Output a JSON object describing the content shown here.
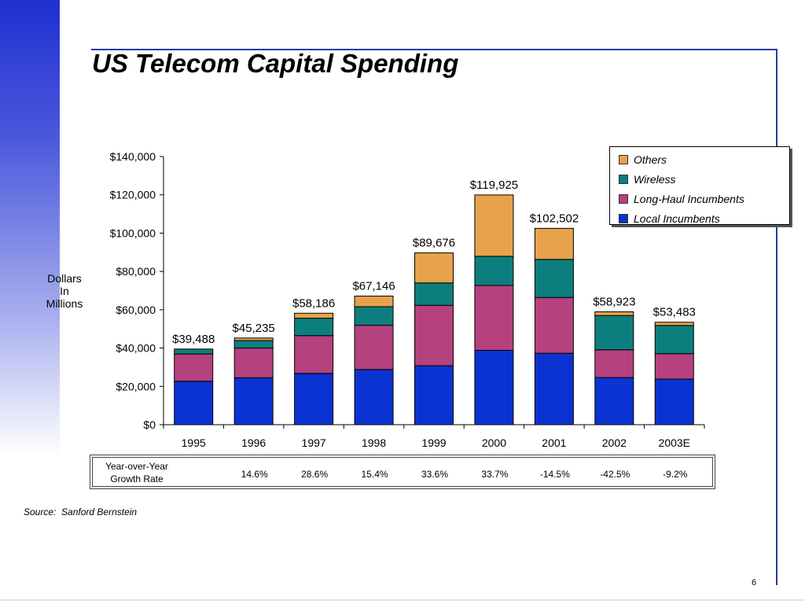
{
  "slide": {
    "title": "US Telecom Capital Spending",
    "source_label": "Source:",
    "source_name": "Sanford Bernstein",
    "page_number": "6"
  },
  "chart_data": {
    "type": "bar",
    "stacked": true,
    "title": "",
    "ylabel_lines": [
      "Dollars",
      "In",
      "Millions"
    ],
    "xlabel": "",
    "categories": [
      "1995",
      "1996",
      "1997",
      "1998",
      "1999",
      "2000",
      "2001",
      "2002",
      "2003E"
    ],
    "ylim": [
      0,
      140000
    ],
    "yticks": [
      0,
      20000,
      40000,
      60000,
      80000,
      100000,
      120000,
      140000
    ],
    "ytick_labels": [
      "$0",
      "$20,000",
      "$40,000",
      "$60,000",
      "$80,000",
      "$100,000",
      "$120,000",
      "$140,000"
    ],
    "series": [
      {
        "name": "Local Incumbents",
        "color": "#0b33d1",
        "values": [
          22700,
          24500,
          26800,
          28800,
          30800,
          38800,
          37300,
          24600,
          23800
        ]
      },
      {
        "name": "Long-Haul Incumbents",
        "color": "#b5417f",
        "values": [
          14200,
          15500,
          19700,
          23100,
          31500,
          33900,
          29100,
          14500,
          13300
        ]
      },
      {
        "name": "Wireless",
        "color": "#0d7e7e",
        "values": [
          2588,
          3900,
          9100,
          9700,
          11700,
          15200,
          19900,
          17900,
          14700
        ]
      },
      {
        "name": "Others",
        "color": "#e8a24b",
        "values": [
          0,
          1335,
          2586,
          5546,
          15676,
          32025,
          16202,
          1923,
          1683
        ]
      }
    ],
    "totals": [
      39488,
      45235,
      58186,
      67146,
      89676,
      119925,
      102502,
      58923,
      53483
    ],
    "total_labels": [
      "$39,488",
      "$45,235",
      "$58,186",
      "$67,146",
      "$89,676",
      "$119,925",
      "$102,502",
      "$58,923",
      "$53,483"
    ],
    "legend_order": [
      "Others",
      "Wireless",
      "Long-Haul Incumbents",
      "Local Incumbents"
    ],
    "legend_position": "top-right",
    "grid": false
  },
  "growth_table": {
    "label_lines": [
      "Year-over-Year",
      "Growth Rate"
    ],
    "values": [
      "14.6%",
      "28.6%",
      "15.4%",
      "33.6%",
      "33.7%",
      "-14.5%",
      "-42.5%",
      "-9.2%"
    ]
  }
}
